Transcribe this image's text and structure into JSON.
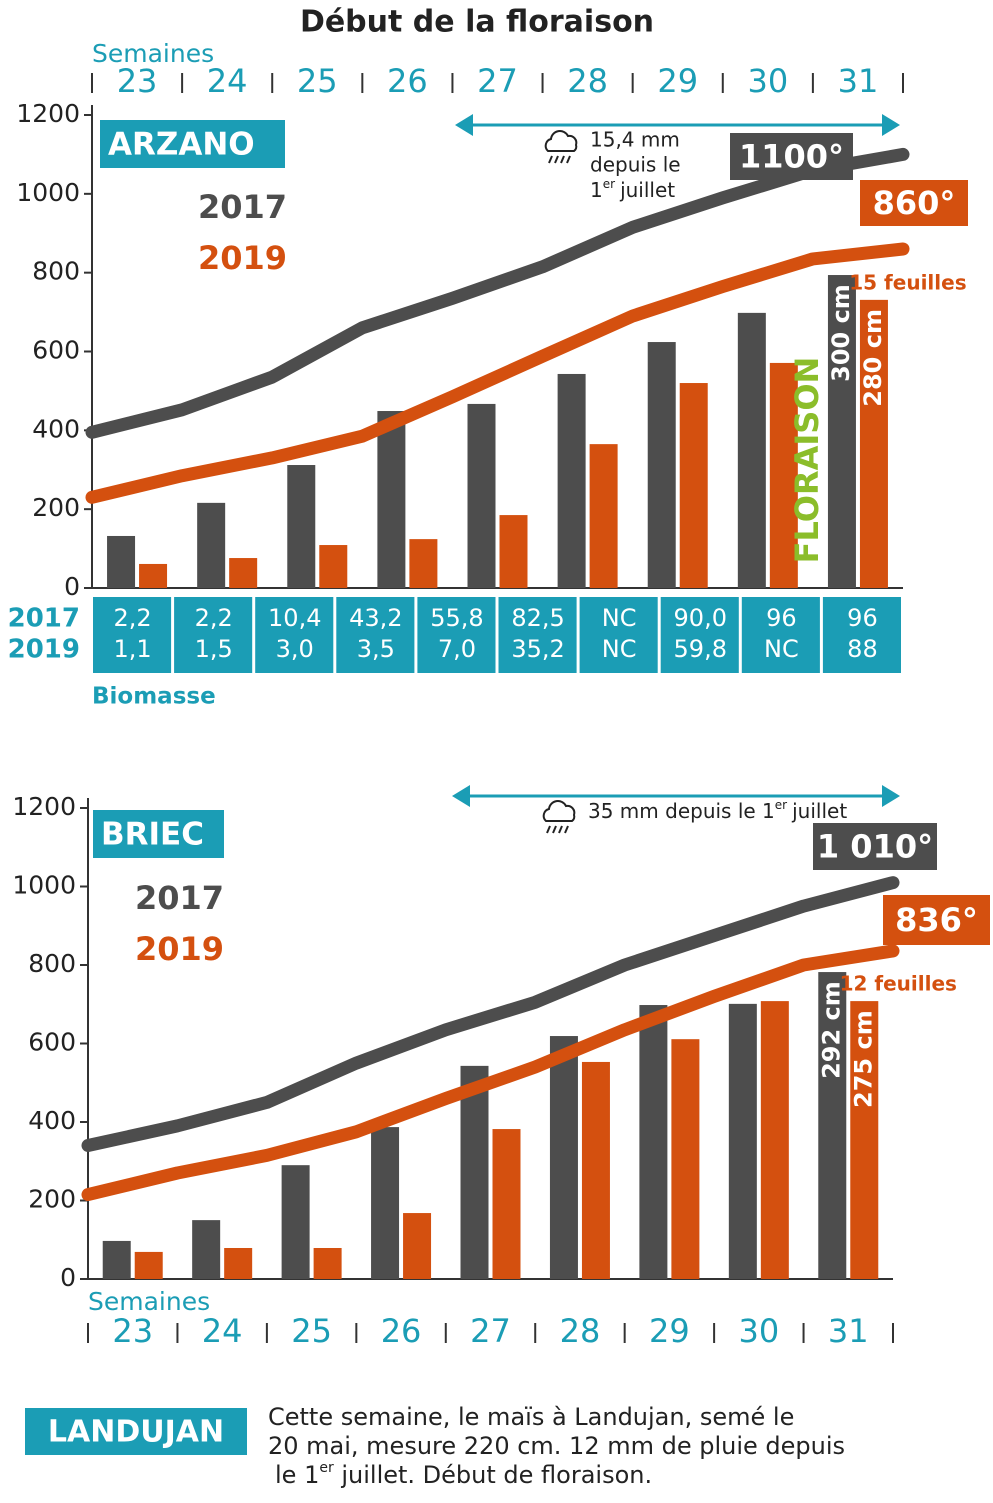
{
  "title": "Début de la floraison",
  "chart_data": [
    {
      "type": "bar",
      "site": "ARZANO",
      "xlabel": "Semaines",
      "week_axis": "top",
      "categories": [
        "23",
        "24",
        "25",
        "26",
        "27",
        "28",
        "29",
        "30",
        "31"
      ],
      "xlim": [
        22.5,
        31.5
      ],
      "ylim": [
        0,
        1200
      ],
      "yticks": [
        0,
        200,
        400,
        600,
        800,
        1000,
        1200
      ],
      "series": [
        {
          "name": "2017",
          "color": "#4d4d4d",
          "values": [
            132,
            216,
            312,
            449,
            467,
            543,
            624,
            698,
            794
          ],
          "height_label": "300 cm",
          "line": {
            "x": [
              22.5,
              23.5,
              24.5,
              25.5,
              26.5,
              27.5,
              28.5,
              29.5,
              30.5,
              31.5
            ],
            "values": [
              395,
              452,
              535,
              660,
              735,
              815,
              915,
              990,
              1060,
              1100
            ],
            "end_label": "1100°"
          }
        },
        {
          "name": "2019",
          "color": "#d4500f",
          "values": [
            61,
            76,
            109,
            124,
            185,
            365,
            520,
            571,
            731
          ],
          "height_label": "280 cm",
          "line": {
            "x": [
              22.5,
              23.5,
              24.5,
              25.5,
              26.5,
              27.5,
              28.5,
              29.5,
              30.5,
              31.5
            ],
            "values": [
              230,
              285,
              330,
              385,
              485,
              588,
              690,
              765,
              835,
              860
            ],
            "end_label": "860°"
          }
        }
      ],
      "leaves_label": "15 feuilles",
      "stage_label": "FLORAISON",
      "rain_note": {
        "lines": [
          "15,4 mm",
          "depuis le"
        ],
        "head": "1",
        "sup": "er",
        "tail": "juillet"
      },
      "table": {
        "title": "Biomasse",
        "row_labels": [
          "2017",
          "2019"
        ],
        "rows": [
          [
            "2,2",
            "2,2",
            "10,4",
            "43,2",
            "55,8",
            "82,5",
            "NC",
            "90,0",
            "96",
            "96"
          ],
          [
            "1,1",
            "1,5",
            "3,0",
            "3,5",
            "7,0",
            "35,2",
            "NC",
            "59,8",
            "NC",
            "88"
          ]
        ]
      }
    },
    {
      "type": "bar",
      "site": "BRIEC",
      "xlabel": "Semaines",
      "week_axis": "bottom",
      "categories": [
        "23",
        "24",
        "25",
        "26",
        "27",
        "28",
        "29",
        "30",
        "31"
      ],
      "xlim": [
        22.5,
        31.5
      ],
      "ylim": [
        0,
        1200
      ],
      "yticks": [
        0,
        200,
        400,
        600,
        800,
        1000,
        1200
      ],
      "series": [
        {
          "name": "2017",
          "color": "#4d4d4d",
          "values": [
            97,
            150,
            290,
            387,
            543,
            619,
            698,
            701,
            782
          ],
          "height_label": "292 cm",
          "line": {
            "x": [
              22.5,
              23.5,
              24.5,
              25.5,
              26.5,
              27.5,
              28.5,
              29.5,
              30.5,
              31.5
            ],
            "values": [
              340,
              390,
              450,
              550,
              635,
              705,
              800,
              875,
              950,
              1010
            ],
            "end_label": "1 010°"
          }
        },
        {
          "name": "2019",
          "color": "#d4500f",
          "values": [
            69,
            79,
            79,
            168,
            382,
            553,
            611,
            708,
            708
          ],
          "height_label": "275 cm",
          "line": {
            "x": [
              22.5,
              23.5,
              24.5,
              25.5,
              26.5,
              27.5,
              28.5,
              29.5,
              30.5,
              31.5
            ],
            "values": [
              215,
              270,
              315,
              375,
              460,
              540,
              635,
              720,
              800,
              836
            ],
            "end_label": "836°"
          }
        }
      ],
      "leaves_label": "12 feuilles",
      "rain_note": {
        "head": "35 mm depuis le 1",
        "sup": "er",
        "tail": "juillet"
      }
    }
  ],
  "footer": {
    "site": "LANDUJAN",
    "lines": [
      "Cette semaine, le maïs à Landujan, semé le",
      "20 mai, mesure 220 cm. 12 mm de pluie depuis"
    ],
    "head": "le 1",
    "sup": "er",
    "tail": " juillet. Début de floraison."
  }
}
